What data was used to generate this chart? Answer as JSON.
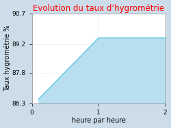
{
  "title": "Evolution du taux d’hygrométrie",
  "title_color": "#ff0000",
  "xlabel": "heure par heure",
  "ylabel": "Taux hygrométrie %",
  "x_data": [
    0.1,
    1.0,
    2.0
  ],
  "y_data": [
    86.5,
    89.5,
    89.5
  ],
  "fill_color": "#b8dff0",
  "line_color": "#5bc8e8",
  "line_width": 1.0,
  "xlim": [
    0,
    2
  ],
  "ylim": [
    86.3,
    90.7
  ],
  "xticks": [
    0,
    1,
    2
  ],
  "yticks": [
    86.3,
    87.8,
    89.2,
    90.7
  ],
  "figure_bg_color": "#ccdce8",
  "axes_bg_color": "#ffffff",
  "title_fontsize": 8.5,
  "label_fontsize": 7,
  "tick_fontsize": 6.5
}
